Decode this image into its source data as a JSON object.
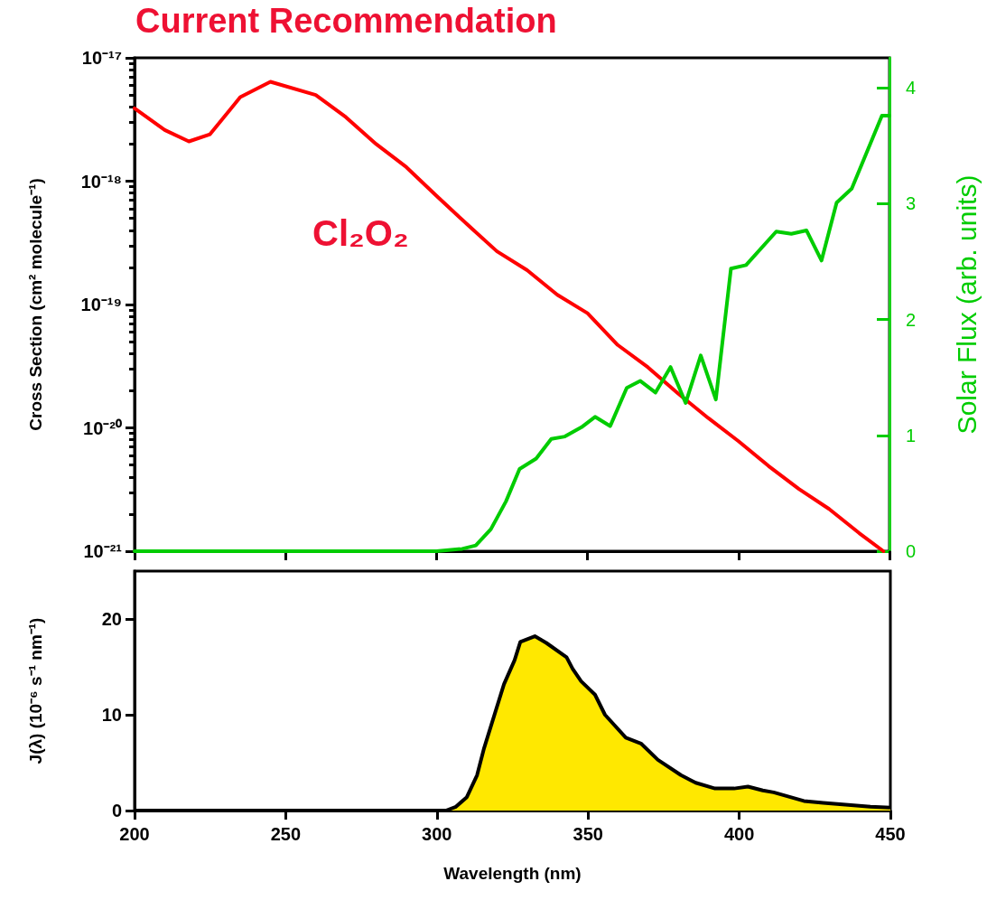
{
  "chart_data": [
    {
      "type": "line",
      "title": "Current Recommendation",
      "ylabel": "Cross Section (cm² molecule⁻¹)",
      "y2label": "Solar Flux (arb. units)",
      "xlim": [
        200,
        450
      ],
      "xticks": [
        200,
        250,
        300,
        350,
        400,
        450
      ],
      "ylim": [
        1e-21,
        1e-17
      ],
      "yticks": [
        {
          "value": 1e-21,
          "label": "10⁻²¹"
        },
        {
          "value": 1e-20,
          "label": "10⁻²⁰"
        },
        {
          "value": 1e-19,
          "label": "10⁻¹⁹"
        },
        {
          "value": 1e-18,
          "label": "10⁻¹⁸"
        },
        {
          "value": 1e-17,
          "label": "10⁻¹⁷"
        }
      ],
      "y2lim": [
        0,
        4.26
      ],
      "y2ticks": [
        0,
        1,
        2,
        3,
        4
      ],
      "log": "y",
      "tick_labels": "y",
      "legend": false,
      "grid": false,
      "marker": "none",
      "line_style": "solid",
      "series": [
        {
          "name": "Cl₂O₂",
          "color": "#ff0000",
          "x": [
            200,
            210,
            218,
            225,
            235,
            245,
            260,
            270,
            280,
            290,
            300,
            310,
            320,
            330,
            340,
            350,
            360,
            370,
            380,
            390,
            400,
            410,
            420,
            430,
            440,
            448
          ],
          "values": [
            3.9e-18,
            2.6e-18,
            2.1e-18,
            2.4e-18,
            4.8e-18,
            6.4e-18,
            5e-18,
            3.3e-18,
            2e-18,
            1.3e-18,
            7.6e-19,
            4.5e-19,
            2.7e-19,
            1.9e-19,
            1.2e-19,
            8.5e-20,
            4.7e-20,
            3.1e-20,
            1.9e-20,
            1.2e-20,
            7.8e-21,
            4.9e-21,
            3.2e-21,
            2.2e-21,
            1.4e-21,
            1e-21
          ]
        },
        {
          "color": "#00cc00",
          "axis": "y2",
          "x": [
            200,
            300,
            308.5,
            313,
            318,
            323,
            327.5,
            333,
            338,
            342.5,
            348,
            352.5,
            357.5,
            363,
            367.5,
            372.5,
            377.5,
            382.5,
            387.5,
            392.5,
            397.5,
            402.5,
            412.5,
            417.5,
            422.5,
            427.5,
            432.5,
            437.5,
            447.5,
            450
          ],
          "values": [
            0,
            0,
            0.02,
            0.05,
            0.19,
            0.43,
            0.71,
            0.8,
            0.97,
            0.99,
            1.07,
            1.16,
            1.08,
            1.41,
            1.47,
            1.37,
            1.59,
            1.28,
            1.69,
            1.31,
            2.44,
            2.47,
            2.76,
            2.74,
            2.77,
            2.51,
            3.01,
            3.13,
            3.76,
            3.76
          ]
        }
      ]
    },
    {
      "type": "area",
      "xlabel": "Wavelength (nm)",
      "ylabel": "J(λ) (10⁻⁶ s⁻¹ nm⁻¹)",
      "xlim": [
        200,
        450
      ],
      "xticks": [
        200,
        250,
        300,
        350,
        400,
        450
      ],
      "ylim": [
        0,
        25
      ],
      "yticks": [
        0,
        10,
        20
      ],
      "legend": false,
      "grid": false,
      "color": "#ffe800",
      "x": [
        200,
        303,
        306.3,
        309.9,
        313.3,
        315.6,
        322.2,
        325.7,
        327.6,
        332.4,
        336.2,
        342.9,
        344.9,
        347.7,
        352.3,
        355.6,
        362.5,
        367.5,
        373.1,
        380.7,
        385.6,
        392,
        398.3,
        402.9,
        407.8,
        411.4,
        421.4,
        427.8,
        443.4,
        450
      ],
      "values": [
        0,
        0,
        0.4,
        1.4,
        3.7,
        6.5,
        13.2,
        15.7,
        17.6,
        18.2,
        17.5,
        16,
        14.8,
        13.5,
        12.1,
        10,
        7.6,
        7,
        5.3,
        3.7,
        2.9,
        2.3,
        2.3,
        2.5,
        2.1,
        1.9,
        1,
        0.8,
        0.4,
        0.3
      ]
    }
  ]
}
